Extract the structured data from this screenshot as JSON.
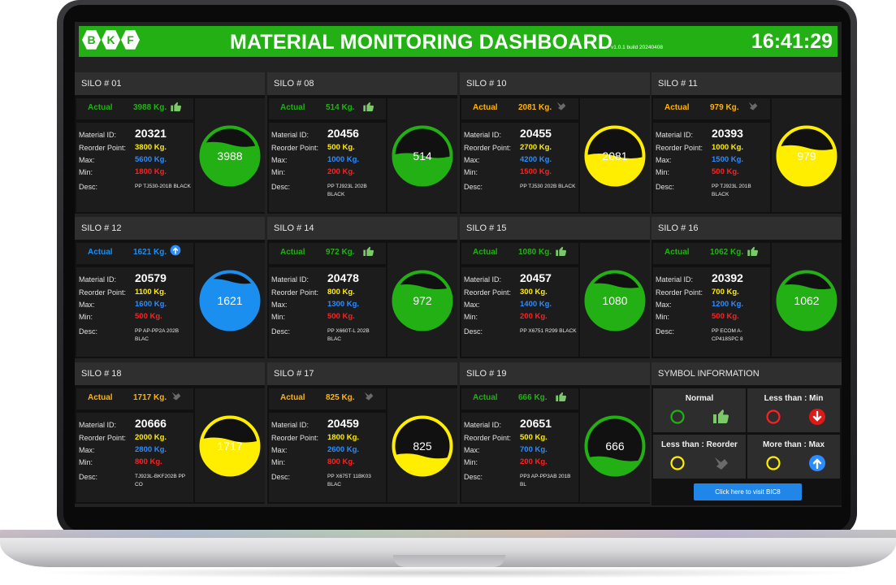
{
  "header": {
    "logo": [
      "B",
      "K",
      "F"
    ],
    "title": "MATERIAL MONITORING DASHBOARD",
    "version": "v1.0.1 build 20240408",
    "clock": "16:41:29"
  },
  "labels": {
    "actual": "Actual",
    "material_id": "Material ID:",
    "reorder_point": "Reorder Point:",
    "max": "Max:",
    "min": "Min:",
    "desc": "Desc:"
  },
  "colors": {
    "green": "#22b014",
    "yellow": "#ffee00",
    "blue": "#1a8ff0",
    "gold": "#ffb300",
    "red": "#ff2020",
    "max_blue": "#2b8cff"
  },
  "silos": [
    {
      "title": "SILO # 01",
      "actual": "3988 Kg.",
      "status": "normal",
      "material_id": "20321",
      "reorder": "3800 Kg.",
      "max": "5600 Kg.",
      "min": "1800 Kg.",
      "desc": "PP TJ530-201B BLACK",
      "gauge": "3988",
      "fill": 0.71
    },
    {
      "title": "SILO # 08",
      "actual": "514 Kg.",
      "status": "normal",
      "material_id": "20456",
      "reorder": "500 Kg.",
      "max": "1000 Kg.",
      "min": "200 Kg.",
      "desc": "PP TJ923L 202B BLACK",
      "gauge": "514",
      "fill": 0.51
    },
    {
      "title": "SILO # 10",
      "actual": "2081 Kg.",
      "status": "reorder",
      "material_id": "20455",
      "reorder": "2700 Kg.",
      "max": "4200 Kg.",
      "min": "1500 Kg.",
      "desc": "PP TJ530 202B BLACK",
      "gauge": "2081",
      "fill": 0.5
    },
    {
      "title": "SILO # 11",
      "actual": "979 Kg.",
      "status": "reorder",
      "material_id": "20393",
      "reorder": "1000 Kg.",
      "max": "1500 Kg.",
      "min": "500 Kg.",
      "desc": "PP TJ923L 201B BLACK",
      "gauge": "979",
      "fill": 0.65
    },
    {
      "title": "SILO # 12",
      "actual": "1621 Kg.",
      "status": "max",
      "material_id": "20579",
      "reorder": "1100 Kg.",
      "max": "1600 Kg.",
      "min": "500 Kg.",
      "desc": "PP AP-PP2A 202B BLAC",
      "gauge": "1621",
      "fill": 0.85
    },
    {
      "title": "SILO # 14",
      "actual": "972 Kg.",
      "status": "normal",
      "material_id": "20478",
      "reorder": "800 Kg.",
      "max": "1300 Kg.",
      "min": "500 Kg.",
      "desc": "PP X660T-L 202B BLAC",
      "gauge": "972",
      "fill": 0.75
    },
    {
      "title": "SILO # 15",
      "actual": "1080 Kg.",
      "status": "normal",
      "material_id": "20457",
      "reorder": "300 Kg.",
      "max": "1400 Kg.",
      "min": "200 Kg.",
      "desc": "PP X6751 R299 BLACK",
      "gauge": "1080",
      "fill": 0.77
    },
    {
      "title": "SILO # 16",
      "actual": "1062 Kg.",
      "status": "normal",
      "material_id": "20392",
      "reorder": "700 Kg.",
      "max": "1200 Kg.",
      "min": "500 Kg.",
      "desc": "PP ECOM A-CP418SPC 8",
      "gauge": "1062",
      "fill": 0.75
    },
    {
      "title": "SILO # 18",
      "actual": "1717 Kg.",
      "status": "reorder",
      "material_id": "20666",
      "reorder": "2000 Kg.",
      "max": "2800 Kg.",
      "min": "800 Kg.",
      "desc": "TJ923L-BKF202B PP CO",
      "gauge": "1717",
      "fill": 0.61
    },
    {
      "title": "SILO # 17",
      "actual": "825 Kg.",
      "status": "reorder",
      "material_id": "20459",
      "reorder": "1800 Kg.",
      "max": "2600 Kg.",
      "min": "800 Kg.",
      "desc": "PP X675T 11BK03 BLAC",
      "gauge": "825",
      "fill": 0.32
    },
    {
      "title": "SILO # 19",
      "actual": "666 Kg.",
      "status": "normal",
      "material_id": "20651",
      "reorder": "500 Kg.",
      "max": "700 Kg.",
      "min": "200 Kg.",
      "desc": "PP3 AP-PP3AB 201B BL",
      "gauge": "666",
      "fill": 0.27
    }
  ],
  "symbol_info": {
    "title": "SYMBOL INFORMATION",
    "normal": "Normal",
    "less_min": "Less than : Min",
    "less_reorder": "Less than : Reorder",
    "more_max": "More than : Max",
    "button": "Click here to visit BIC8"
  }
}
